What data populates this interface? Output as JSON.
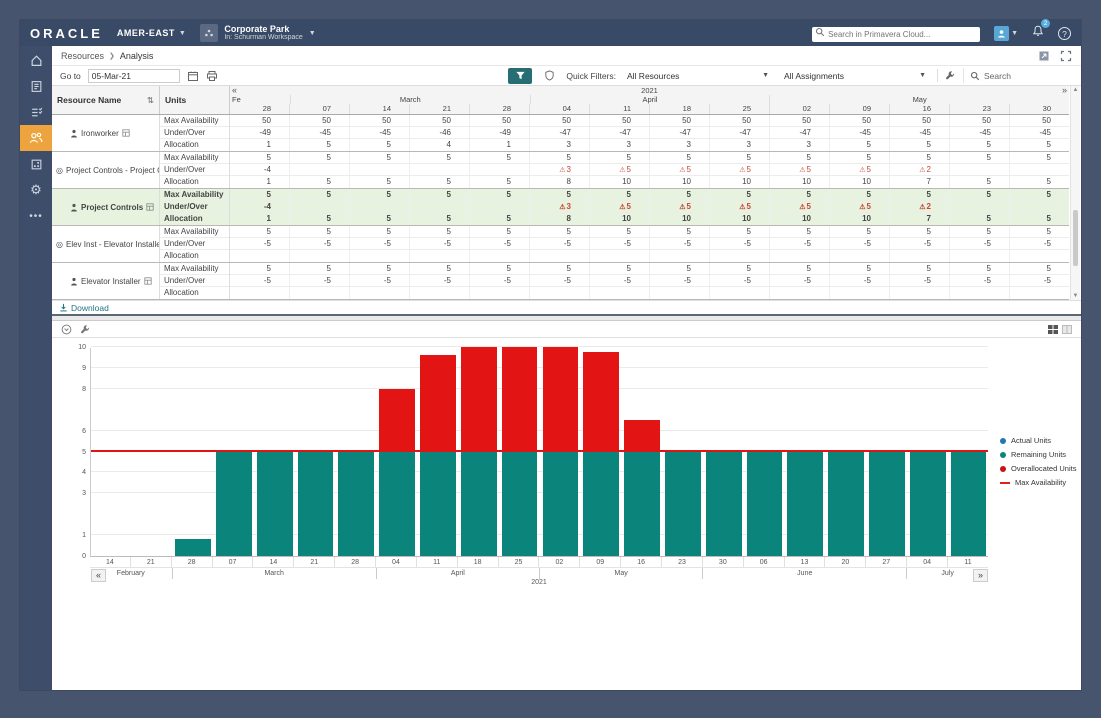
{
  "header": {
    "logo": "ORACLE",
    "env": "AMER-EAST",
    "workspace": {
      "title": "Corporate Park",
      "subtitle": "In: Schurman Workspace"
    },
    "search_placeholder": "Search in Primavera Cloud...",
    "notification_count": "2",
    "help_label": "?"
  },
  "breadcrumb": [
    "Resources",
    "Analysis"
  ],
  "toolbar": {
    "goto_label": "Go to",
    "date_value": "05-Mar-21",
    "quick_filters_label": "Quick Filters:",
    "resources_filter": "All Resources",
    "assignments_filter": "All Assignments",
    "search_label": "Search"
  },
  "grid": {
    "resource_col": "Resource Name",
    "units_col": "Units",
    "year": "2021",
    "prev": "«",
    "next": "»",
    "months": [
      {
        "label": "Fe",
        "span": 1
      },
      {
        "label": "March",
        "span": 4
      },
      {
        "label": "April",
        "span": 4
      },
      {
        "label": "May",
        "span": 5
      }
    ],
    "days": [
      "28",
      "07",
      "14",
      "21",
      "28",
      "04",
      "11",
      "18",
      "25",
      "02",
      "09",
      "16",
      "23",
      "30"
    ],
    "unit_rows": [
      "Max Availability",
      "Under/Over",
      "Allocation"
    ],
    "rows": [
      {
        "name": "Ironworker",
        "kind": "resource",
        "selected": false,
        "max": [
          "50",
          "50",
          "50",
          "50",
          "50",
          "50",
          "50",
          "50",
          "50",
          "50",
          "50",
          "50",
          "50",
          "50"
        ],
        "under": [
          "-49",
          "-45",
          "-45",
          "-46",
          "-49",
          "-47",
          "-47",
          "-47",
          "-47",
          "-47",
          "-45",
          "-45",
          "-45",
          "-45"
        ],
        "alloc": [
          "1",
          "5",
          "5",
          "4",
          "1",
          "3",
          "3",
          "3",
          "3",
          "3",
          "5",
          "5",
          "5",
          "5"
        ]
      },
      {
        "name": "Project Controls - Project Co...",
        "kind": "role",
        "selected": false,
        "max": [
          "5",
          "5",
          "5",
          "5",
          "5",
          "5",
          "5",
          "5",
          "5",
          "5",
          "5",
          "5",
          "5",
          "5"
        ],
        "under": [
          "-4",
          "",
          "",
          "",
          "",
          "3!",
          "5!",
          "5!",
          "5!",
          "5!",
          "5!",
          "2!",
          "",
          ""
        ],
        "alloc": [
          "1",
          "5",
          "5",
          "5",
          "5",
          "8",
          "10",
          "10",
          "10",
          "10",
          "10",
          "7",
          "5",
          "5"
        ]
      },
      {
        "name": "Project Controls",
        "kind": "resource",
        "selected": true,
        "max": [
          "5",
          "5",
          "5",
          "5",
          "5",
          "5",
          "5",
          "5",
          "5",
          "5",
          "5",
          "5",
          "5",
          "5"
        ],
        "under": [
          "-4",
          "",
          "",
          "",
          "",
          "3!",
          "5!",
          "5!",
          "5!",
          "5!",
          "5!",
          "2!",
          "",
          ""
        ],
        "alloc": [
          "1",
          "5",
          "5",
          "5",
          "5",
          "8",
          "10",
          "10",
          "10",
          "10",
          "10",
          "7",
          "5",
          "5"
        ]
      },
      {
        "name": "Elev Inst - Elevator Installer",
        "kind": "role",
        "selected": false,
        "max": [
          "5",
          "5",
          "5",
          "5",
          "5",
          "5",
          "5",
          "5",
          "5",
          "5",
          "5",
          "5",
          "5",
          "5"
        ],
        "under": [
          "-5",
          "-5",
          "-5",
          "-5",
          "-5",
          "-5",
          "-5",
          "-5",
          "-5",
          "-5",
          "-5",
          "-5",
          "-5",
          "-5"
        ],
        "alloc": [
          "",
          "",
          "",
          "",
          "",
          "",
          "",
          "",
          "",
          "",
          "",
          "",
          "",
          ""
        ]
      },
      {
        "name": "Elevator Installer",
        "kind": "resource",
        "selected": false,
        "max": [
          "5",
          "5",
          "5",
          "5",
          "5",
          "5",
          "5",
          "5",
          "5",
          "5",
          "5",
          "5",
          "5",
          "5"
        ],
        "under": [
          "-5",
          "-5",
          "-5",
          "-5",
          "-5",
          "-5",
          "-5",
          "-5",
          "-5",
          "-5",
          "-5",
          "-5",
          "-5",
          "-5"
        ],
        "alloc": [
          "",
          "",
          "",
          "",
          "",
          "",
          "",
          "",
          "",
          "",
          "",
          "",
          "",
          ""
        ]
      }
    ],
    "download_label": "Download"
  },
  "chart_data": {
    "type": "bar",
    "stacked": true,
    "x": [
      "14",
      "21",
      "28",
      "07",
      "14",
      "21",
      "28",
      "04",
      "11",
      "18",
      "25",
      "02",
      "09",
      "16",
      "23",
      "30",
      "06",
      "13",
      "20",
      "27",
      "04",
      "11"
    ],
    "month_groups": [
      {
        "label": "February",
        "span": 2
      },
      {
        "label": "March",
        "span": 5
      },
      {
        "label": "April",
        "span": 4
      },
      {
        "label": "May",
        "span": 4
      },
      {
        "label": "June",
        "span": 5
      },
      {
        "label": "July",
        "span": 2
      }
    ],
    "series": [
      {
        "name": "Remaining Units",
        "color": "#0b857c",
        "values": [
          0,
          0,
          0.8,
          5,
          5,
          5,
          5,
          5,
          5,
          5,
          5,
          5,
          5,
          5,
          5,
          5,
          5,
          5,
          5,
          5,
          5,
          5
        ]
      },
      {
        "name": "Overallocated Units",
        "color": "#e21414",
        "values": [
          0,
          0,
          0,
          0,
          0,
          0,
          0,
          3,
          4.6,
          5,
          5,
          5,
          4.75,
          1.5,
          0,
          0,
          0,
          0,
          0,
          0,
          0,
          0
        ]
      }
    ],
    "max_availability": 5,
    "max_line_color": "#dd1515",
    "legend": [
      {
        "label": "Actual Units",
        "color": "#1f78b4",
        "type": "dot"
      },
      {
        "label": "Remaining Units",
        "color": "#0b857c",
        "type": "dot"
      },
      {
        "label": "Overallocated Units",
        "color": "#cc1111",
        "type": "dot"
      },
      {
        "label": "Max Availability",
        "color": "#e02020",
        "type": "line"
      }
    ],
    "ylim": [
      0,
      10
    ],
    "yticks": [
      0,
      1,
      3,
      4,
      5,
      6,
      8,
      9,
      10
    ],
    "year_label": "2021",
    "prev": "«",
    "next": "»"
  }
}
